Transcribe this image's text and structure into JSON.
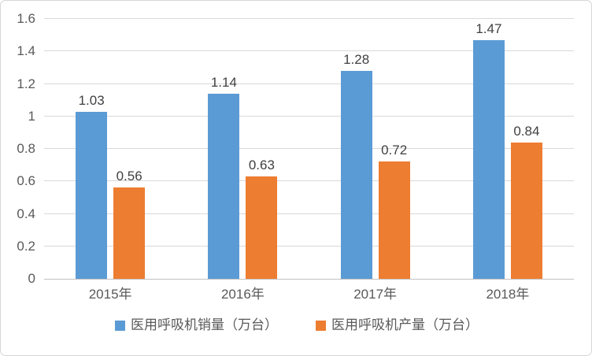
{
  "chart_data": {
    "type": "bar",
    "title": "",
    "categories": [
      "2015年",
      "2016年",
      "2017年",
      "2018年"
    ],
    "series": [
      {
        "name": "医用呼吸机销量（万台）",
        "color": "#5B9BD5",
        "values": [
          1.03,
          1.14,
          1.28,
          1.47
        ]
      },
      {
        "name": "医用呼吸机产量（万台）",
        "color": "#ED7D31",
        "values": [
          0.56,
          0.63,
          0.72,
          0.84
        ]
      }
    ],
    "data_labels": [
      [
        "1.03",
        "1.14",
        "1.28",
        "1.47"
      ],
      [
        "0.56",
        "0.63",
        "0.72",
        "0.84"
      ]
    ],
    "xlabel": "",
    "ylabel": "",
    "ylim": [
      0,
      1.6
    ],
    "ytick_step": 0.2,
    "ytick_labels": [
      "0",
      "0.2",
      "0.4",
      "0.6",
      "0.8",
      "1",
      "1.2",
      "1.4",
      "1.6"
    ],
    "grid": true,
    "legend_position": "bottom"
  },
  "colors": {
    "series_sales": "#5B9BD5",
    "series_production": "#ED7D31",
    "gridline": "#D9D9D9",
    "axis_line": "#C2C2C2",
    "tick_text": "#595959",
    "data_label_text": "#404040",
    "frame_border": "#D6D6D6",
    "background": "#FFFFFF"
  }
}
